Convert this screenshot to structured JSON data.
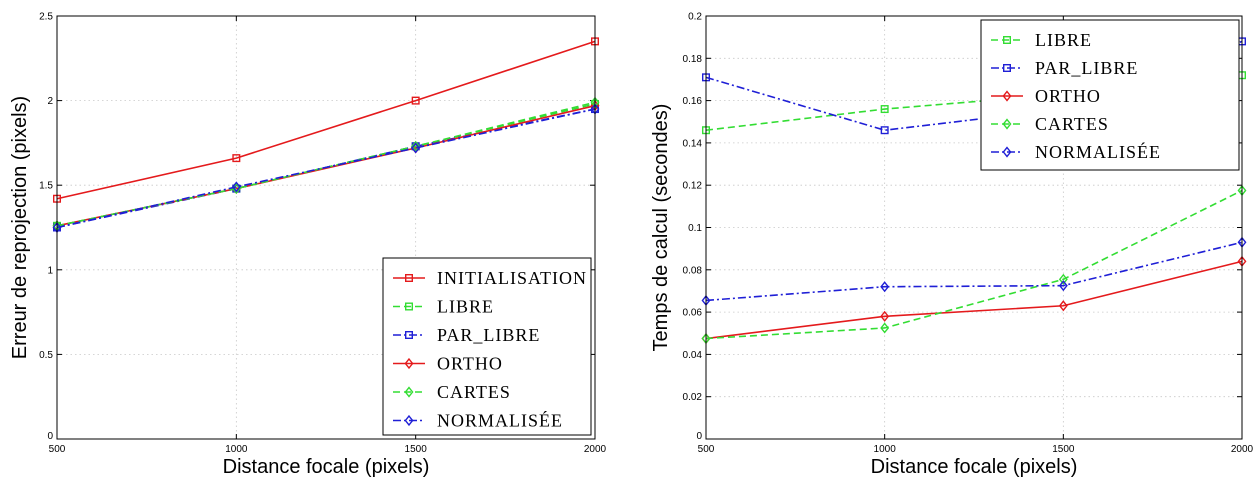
{
  "chart_data": [
    {
      "type": "line",
      "xlabel": "Distance focale (pixels)",
      "ylabel": "Erreur de reprojection (pixels)",
      "x": [
        500,
        1000,
        1500,
        2000
      ],
      "xlim": [
        500,
        2000
      ],
      "ylim": [
        0,
        2.5
      ],
      "xticks": [
        "500",
        "1000",
        "1500",
        "2000"
      ],
      "yticks": [
        "0",
        "0.5",
        "1",
        "1.5",
        "2",
        "2.5"
      ],
      "grid": true,
      "legend_position": "bottom-right",
      "series": [
        {
          "name": "INITIALISATION",
          "values": [
            1.42,
            1.66,
            2.0,
            2.35
          ],
          "color": "#e41a1c",
          "dash": "solid",
          "marker": "square"
        },
        {
          "name": "LIBRE",
          "values": [
            1.26,
            1.48,
            1.73,
            1.98
          ],
          "color": "#33dd33",
          "dash": "dashed",
          "marker": "square"
        },
        {
          "name": "PAR_LIBRE",
          "values": [
            1.25,
            1.48,
            1.73,
            1.95
          ],
          "color": "#1f1fd6",
          "dash": "dashdot",
          "marker": "square"
        },
        {
          "name": "ORTHO",
          "values": [
            1.26,
            1.48,
            1.72,
            1.97
          ],
          "color": "#e41a1c",
          "dash": "solid",
          "marker": "diamond"
        },
        {
          "name": "CARTES",
          "values": [
            1.26,
            1.48,
            1.73,
            1.99
          ],
          "color": "#33dd33",
          "dash": "dashed",
          "marker": "diamond"
        },
        {
          "name": "NORMALISÉE",
          "values": [
            1.25,
            1.49,
            1.72,
            1.95
          ],
          "color": "#1f1fd6",
          "dash": "dashdot",
          "marker": "diamond"
        }
      ]
    },
    {
      "type": "line",
      "xlabel": "Distance focale (pixels)",
      "ylabel": "Temps de calcul (secondes)",
      "x": [
        500,
        1000,
        1500,
        2000
      ],
      "xlim": [
        500,
        2000
      ],
      "ylim": [
        0,
        0.2
      ],
      "xticks": [
        "500",
        "1000",
        "1500",
        "2000"
      ],
      "yticks": [
        "0",
        "0.02",
        "0.04",
        "0.06",
        "0.08",
        "0.1",
        "0.12",
        "0.14",
        "0.16",
        "0.18",
        "0.2"
      ],
      "grid": true,
      "legend_position": "top-right",
      "series": [
        {
          "name": "LIBRE",
          "values": [
            0.146,
            0.156,
            0.163,
            0.172
          ],
          "color": "#33dd33",
          "dash": "dashed",
          "marker": "square"
        },
        {
          "name": "PAR_LIBRE",
          "values": [
            0.171,
            0.146,
            0.156,
            0.188
          ],
          "color": "#1f1fd6",
          "dash": "dashdot",
          "marker": "square"
        },
        {
          "name": "ORTHO",
          "values": [
            0.0475,
            0.058,
            0.063,
            0.084
          ],
          "color": "#e41a1c",
          "dash": "solid",
          "marker": "diamond"
        },
        {
          "name": "CARTES",
          "values": [
            0.0475,
            0.0525,
            0.0755,
            0.1175
          ],
          "color": "#33dd33",
          "dash": "dashed",
          "marker": "diamond"
        },
        {
          "name": "NORMALISÉE",
          "values": [
            0.0655,
            0.072,
            0.0725,
            0.093
          ],
          "color": "#1f1fd6",
          "dash": "dashdot",
          "marker": "diamond"
        }
      ]
    }
  ]
}
